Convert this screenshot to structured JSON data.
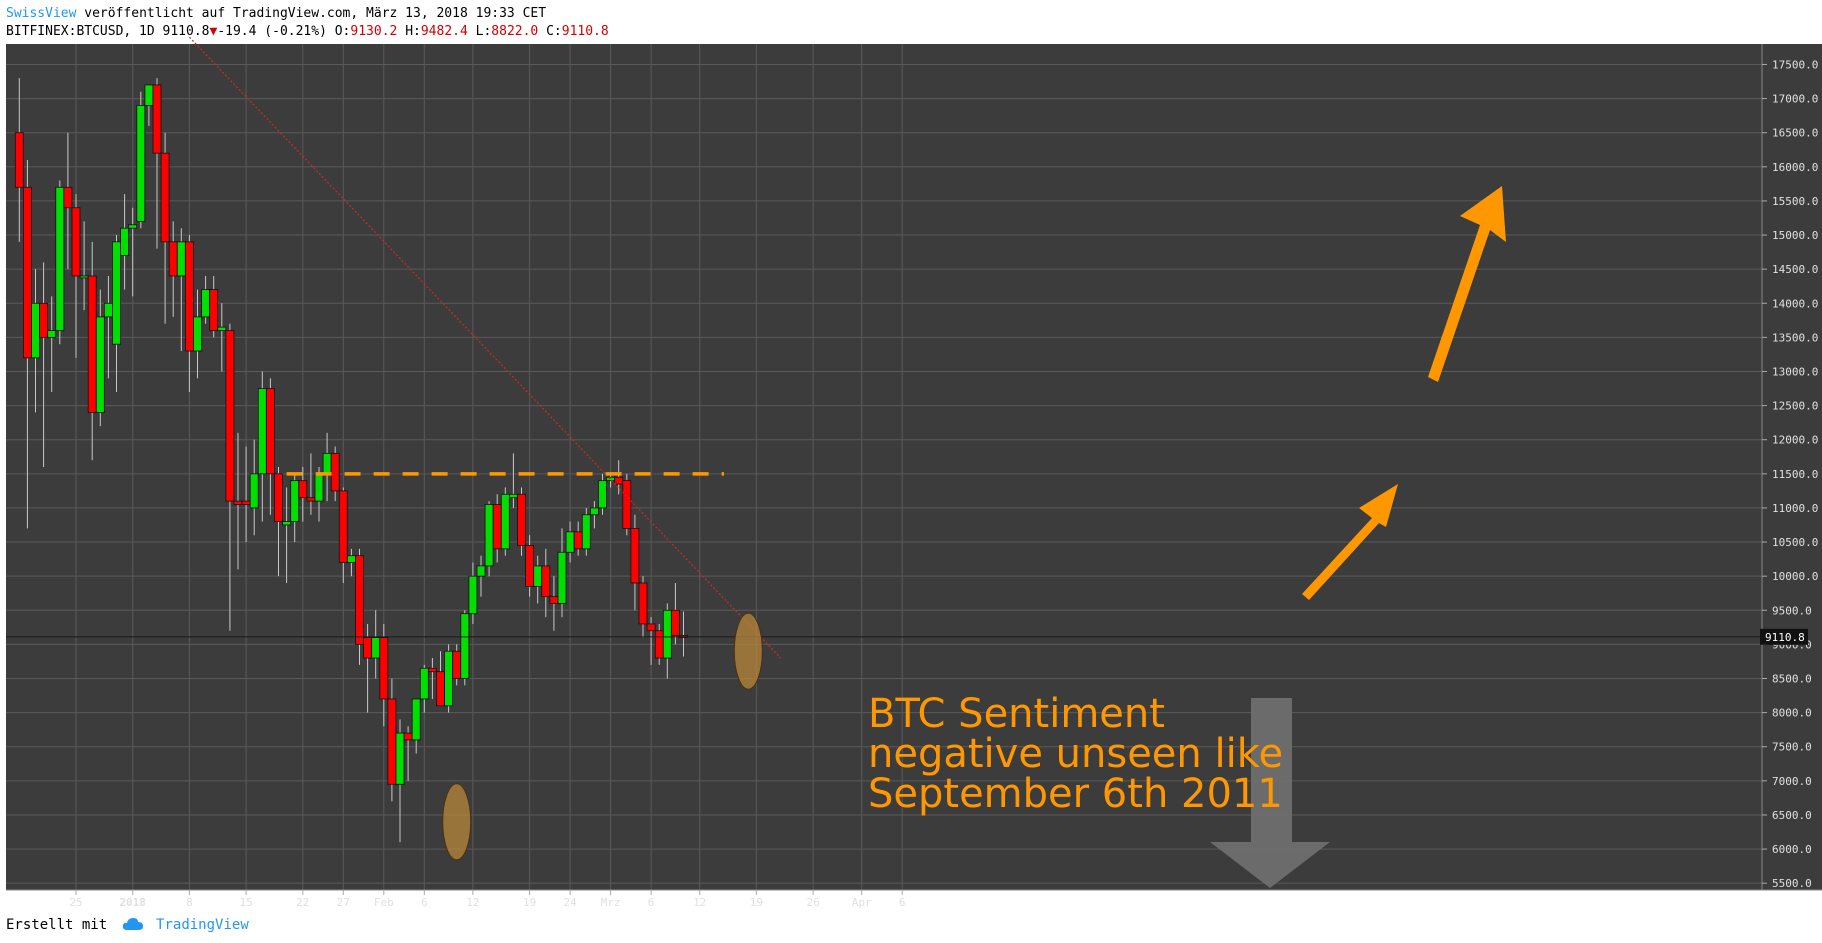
{
  "header": {
    "author": "SwissView",
    "published": "veröffentlicht auf TradingView.com, März 13, 2018 19:33 CET",
    "symbol": "BITFINEX:BTCUSD, 1D 9110.8",
    "change": "-19.4 (-0.21%)",
    "o_label": "O:",
    "o_value": "9130.2",
    "h_label": "H:",
    "h_value": "9482.4",
    "l_label": "L:",
    "l_value": "8822.0",
    "c_label": "C:",
    "c_value": "9110.8"
  },
  "footer": {
    "created_with": "Erstellt mit",
    "brand": "TradingView",
    "brand_icon": "cloud-icon"
  },
  "colors": {
    "background": "#3c3c3c",
    "grid": "#5a5a5a",
    "up": "#00e000",
    "down": "#ff0000",
    "annotation": "#ff9800",
    "trendline": "#cc2a2a",
    "highlight": "#b8873a",
    "down_arrow": "#6e6e6e"
  },
  "chart_data": {
    "type": "candlestick",
    "y_range": [
      5400,
      17800
    ],
    "y_ticks": [
      "17500.0",
      "17000.0",
      "16500.0",
      "16000.0",
      "15500.0",
      "15000.0",
      "14500.0",
      "14000.0",
      "13500.0",
      "13000.0",
      "12500.0",
      "12000.0",
      "11500.0",
      "11000.0",
      "10500.0",
      "10000.0",
      "9500.0",
      "9000.0",
      "8500.0",
      "8000.0",
      "7500.0",
      "7000.0",
      "6500.0",
      "6000.0",
      "5500.0"
    ],
    "x_labels": [
      {
        "label": "25",
        "day": 0
      },
      {
        "label": "2018",
        "day": 7
      },
      {
        "label": "8",
        "day": 14
      },
      {
        "label": "15",
        "day": 21
      },
      {
        "label": "22",
        "day": 28
      },
      {
        "label": "27",
        "day": 33
      },
      {
        "label": "Feb",
        "day": 38
      },
      {
        "label": "6",
        "day": 43
      },
      {
        "label": "12",
        "day": 49
      },
      {
        "label": "19",
        "day": 56
      },
      {
        "label": "24",
        "day": 61
      },
      {
        "label": "Mrz",
        "day": 66
      },
      {
        "label": "6",
        "day": 71
      },
      {
        "label": "12",
        "day": 77
      },
      {
        "label": "19",
        "day": 84
      },
      {
        "label": "26",
        "day": 91
      },
      {
        "label": "Apr",
        "day": 97
      },
      {
        "label": "6",
        "day": 102
      }
    ],
    "candles": [
      {
        "o": 16500,
        "h": 17300,
        "l": 14900,
        "c": 15700
      },
      {
        "o": 15700,
        "h": 16100,
        "l": 10700,
        "c": 13200
      },
      {
        "o": 13200,
        "h": 14500,
        "l": 12400,
        "c": 14000
      },
      {
        "o": 14000,
        "h": 14600,
        "l": 11600,
        "c": 13500
      },
      {
        "o": 13500,
        "h": 14100,
        "l": 12700,
        "c": 13600
      },
      {
        "o": 13600,
        "h": 15800,
        "l": 13400,
        "c": 15700
      },
      {
        "o": 15700,
        "h": 16500,
        "l": 14500,
        "c": 15400
      },
      {
        "o": 15400,
        "h": 15600,
        "l": 13200,
        "c": 14400
      },
      {
        "o": 14400,
        "h": 15200,
        "l": 13900,
        "c": 14400
      },
      {
        "o": 14400,
        "h": 14900,
        "l": 11700,
        "c": 12400
      },
      {
        "o": 12400,
        "h": 14200,
        "l": 12200,
        "c": 13800
      },
      {
        "o": 13800,
        "h": 14400,
        "l": 12900,
        "c": 14000
      },
      {
        "o": 13400,
        "h": 15000,
        "l": 12700,
        "c": 14900
      },
      {
        "o": 14700,
        "h": 15600,
        "l": 14200,
        "c": 15100
      },
      {
        "o": 15100,
        "h": 15400,
        "l": 14100,
        "c": 15150
      },
      {
        "o": 15200,
        "h": 17100,
        "l": 15100,
        "c": 16900
      },
      {
        "o": 16900,
        "h": 17200,
        "l": 16600,
        "c": 17200
      },
      {
        "o": 17200,
        "h": 17300,
        "l": 14800,
        "c": 16200
      },
      {
        "o": 16200,
        "h": 16500,
        "l": 13700,
        "c": 14900
      },
      {
        "o": 14900,
        "h": 15200,
        "l": 13800,
        "c": 14400
      },
      {
        "o": 14400,
        "h": 15100,
        "l": 13300,
        "c": 14900
      },
      {
        "o": 14900,
        "h": 15000,
        "l": 12700,
        "c": 13300
      },
      {
        "o": 13300,
        "h": 14200,
        "l": 12900,
        "c": 13800
      },
      {
        "o": 13800,
        "h": 14400,
        "l": 13700,
        "c": 14200
      },
      {
        "o": 14200,
        "h": 14400,
        "l": 13500,
        "c": 13600
      },
      {
        "o": 13600,
        "h": 14000,
        "l": 13000,
        "c": 13650
      },
      {
        "o": 13600,
        "h": 13700,
        "l": 9200,
        "c": 11100
      },
      {
        "o": 11100,
        "h": 12100,
        "l": 10100,
        "c": 11050
      },
      {
        "o": 11100,
        "h": 11900,
        "l": 10500,
        "c": 11050
      },
      {
        "o": 11000,
        "h": 12000,
        "l": 10600,
        "c": 11500
      },
      {
        "o": 11500,
        "h": 13000,
        "l": 10800,
        "c": 12750
      },
      {
        "o": 12750,
        "h": 12900,
        "l": 10900,
        "c": 11500
      },
      {
        "o": 11500,
        "h": 11600,
        "l": 10000,
        "c": 10800
      },
      {
        "o": 10750,
        "h": 11300,
        "l": 9900,
        "c": 10800
      },
      {
        "o": 10800,
        "h": 11500,
        "l": 10500,
        "c": 11400
      },
      {
        "o": 11400,
        "h": 11600,
        "l": 10800,
        "c": 11150
      },
      {
        "o": 11150,
        "h": 11800,
        "l": 10900,
        "c": 11100
      },
      {
        "o": 11100,
        "h": 11600,
        "l": 10800,
        "c": 11500
      },
      {
        "o": 11500,
        "h": 12100,
        "l": 11100,
        "c": 11800
      },
      {
        "o": 11800,
        "h": 11900,
        "l": 11100,
        "c": 11250
      },
      {
        "o": 11250,
        "h": 11300,
        "l": 9900,
        "c": 10200
      },
      {
        "o": 10200,
        "h": 10400,
        "l": 10000,
        "c": 10300
      },
      {
        "o": 10300,
        "h": 10400,
        "l": 8700,
        "c": 9000
      },
      {
        "o": 9100,
        "h": 9300,
        "l": 8000,
        "c": 8800
      },
      {
        "o": 8800,
        "h": 9500,
        "l": 8500,
        "c": 9100
      },
      {
        "o": 9100,
        "h": 9300,
        "l": 7800,
        "c": 8200
      },
      {
        "o": 8200,
        "h": 8500,
        "l": 6700,
        "c": 6950
      },
      {
        "o": 6950,
        "h": 7900,
        "l": 6100,
        "c": 7700
      },
      {
        "o": 7700,
        "h": 7800,
        "l": 7000,
        "c": 7600
      },
      {
        "o": 7600,
        "h": 8200,
        "l": 7400,
        "c": 8200
      },
      {
        "o": 8200,
        "h": 8700,
        "l": 8000,
        "c": 8650
      },
      {
        "o": 8650,
        "h": 8800,
        "l": 8200,
        "c": 8600
      },
      {
        "o": 8600,
        "h": 8900,
        "l": 8100,
        "c": 8100
      },
      {
        "o": 8100,
        "h": 9000,
        "l": 8000,
        "c": 8900
      },
      {
        "o": 8900,
        "h": 9000,
        "l": 8400,
        "c": 8500
      },
      {
        "o": 8500,
        "h": 9500,
        "l": 8400,
        "c": 9450
      },
      {
        "o": 9450,
        "h": 10200,
        "l": 9300,
        "c": 10000
      },
      {
        "o": 10000,
        "h": 10300,
        "l": 9700,
        "c": 10150
      },
      {
        "o": 10150,
        "h": 11100,
        "l": 10000,
        "c": 11050
      },
      {
        "o": 11050,
        "h": 11200,
        "l": 10200,
        "c": 10400
      },
      {
        "o": 10400,
        "h": 11300,
        "l": 10300,
        "c": 11200
      },
      {
        "o": 11150,
        "h": 11800,
        "l": 11000,
        "c": 11200
      },
      {
        "o": 11200,
        "h": 11300,
        "l": 10300,
        "c": 10450
      },
      {
        "o": 10450,
        "h": 10600,
        "l": 9700,
        "c": 9850
      },
      {
        "o": 9850,
        "h": 10300,
        "l": 9600,
        "c": 10150
      },
      {
        "o": 10150,
        "h": 10400,
        "l": 9400,
        "c": 9700
      },
      {
        "o": 9700,
        "h": 10000,
        "l": 9200,
        "c": 9600
      },
      {
        "o": 9600,
        "h": 10700,
        "l": 9400,
        "c": 10350
      },
      {
        "o": 10350,
        "h": 10800,
        "l": 10200,
        "c": 10650
      },
      {
        "o": 10650,
        "h": 10800,
        "l": 10300,
        "c": 10400
      },
      {
        "o": 10400,
        "h": 11000,
        "l": 10300,
        "c": 10900
      },
      {
        "o": 10900,
        "h": 11100,
        "l": 10700,
        "c": 11000
      },
      {
        "o": 11000,
        "h": 11500,
        "l": 10900,
        "c": 11400
      },
      {
        "o": 11400,
        "h": 11500,
        "l": 11300,
        "c": 11450
      },
      {
        "o": 11450,
        "h": 11700,
        "l": 11200,
        "c": 11350
      },
      {
        "o": 11400,
        "h": 11500,
        "l": 10600,
        "c": 10700
      },
      {
        "o": 10700,
        "h": 10900,
        "l": 9500,
        "c": 9900
      },
      {
        "o": 9900,
        "h": 10000,
        "l": 9100,
        "c": 9300
      },
      {
        "o": 9300,
        "h": 9400,
        "l": 8700,
        "c": 9200
      },
      {
        "o": 9200,
        "h": 9300,
        "l": 8700,
        "c": 8800
      },
      {
        "o": 8800,
        "h": 9600,
        "l": 8500,
        "c": 9500
      },
      {
        "o": 9500,
        "h": 9900,
        "l": 9000,
        "c": 9130
      },
      {
        "o": 9130,
        "h": 9482,
        "l": 8822,
        "c": 9110
      }
    ],
    "last_price": "9110.8",
    "annotations": {
      "text_lines": [
        "BTC Sentiment",
        "negative unseen like",
        "September 6th 2011"
      ],
      "resistance_level": 11500,
      "trendline": [
        {
          "day": 14,
          "price": 17900
        },
        {
          "day": 87,
          "price": 8800
        }
      ],
      "highlights": [
        {
          "day": 47,
          "price": 6400
        },
        {
          "day": 83,
          "price": 8900
        }
      ],
      "arrows": [
        "up-large",
        "up-small",
        "down-gray"
      ]
    }
  }
}
